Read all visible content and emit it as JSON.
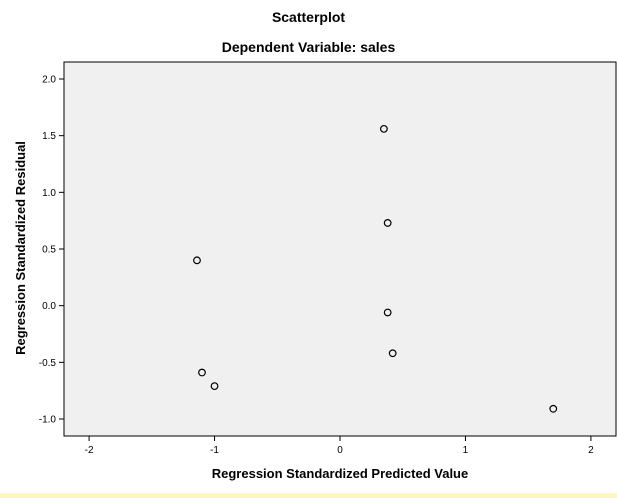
{
  "chart_data": {
    "type": "scatter",
    "title": "Scatterplot",
    "subtitle": "Dependent Variable: sales",
    "xlabel": "Regression Standardized Predicted Value",
    "ylabel": "Regression Standardized Residual",
    "xlim": [
      -2.2,
      2.2
    ],
    "ylim": [
      -1.15,
      2.15
    ],
    "xticks": [
      -2,
      -1,
      0,
      1,
      2
    ],
    "xtick_labels": [
      "-2",
      "-1",
      "0",
      "1",
      "2"
    ],
    "yticks": [
      2.0,
      1.5,
      1.0,
      0.5,
      0.0,
      -0.5,
      -1.0
    ],
    "ytick_labels": [
      "2.0",
      "1.5",
      "1.0",
      "0.5",
      "0.0",
      "-0.5",
      "-1.0"
    ],
    "grid": false,
    "plot_background": "#f0f0f0",
    "marker": "open-circle",
    "points": [
      {
        "x": 0.35,
        "y": 1.56
      },
      {
        "x": 0.38,
        "y": 0.73
      },
      {
        "x": -1.14,
        "y": 0.4
      },
      {
        "x": 0.38,
        "y": -0.06
      },
      {
        "x": 0.42,
        "y": -0.42
      },
      {
        "x": -1.1,
        "y": -0.59
      },
      {
        "x": -1.0,
        "y": -0.71
      },
      {
        "x": 1.7,
        "y": -0.91
      }
    ]
  }
}
